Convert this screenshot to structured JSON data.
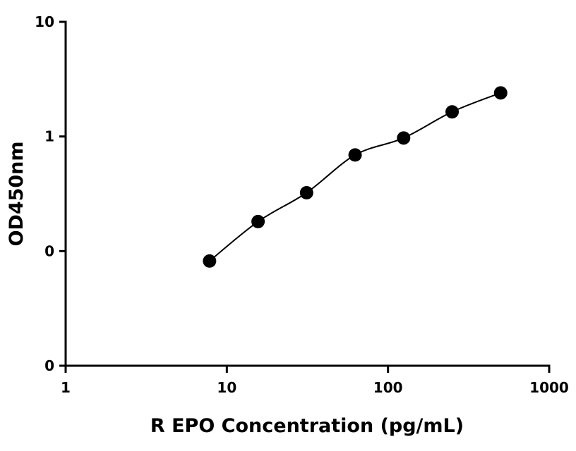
{
  "chart_data": {
    "type": "scatter",
    "x_label": "R EPO Concentration (pg/mL)",
    "y_label": "OD450nm",
    "x_log": true,
    "y_log": true,
    "xlim": [
      1,
      1000
    ],
    "xticks": [
      1,
      10,
      100,
      1000
    ],
    "ylim": [
      0.01,
      10
    ],
    "yticks": [
      {
        "value": 0.01,
        "label": "0"
      },
      {
        "value": 0.1,
        "label": "0"
      },
      1,
      10
    ],
    "series": [
      {
        "color": "#000000",
        "x": [
          7.8125,
          15.625,
          31.25,
          62.5,
          125,
          250,
          500
        ],
        "values": [
          0.082,
          0.181,
          0.323,
          0.69,
          0.97,
          1.64,
          2.4
        ]
      }
    ]
  }
}
